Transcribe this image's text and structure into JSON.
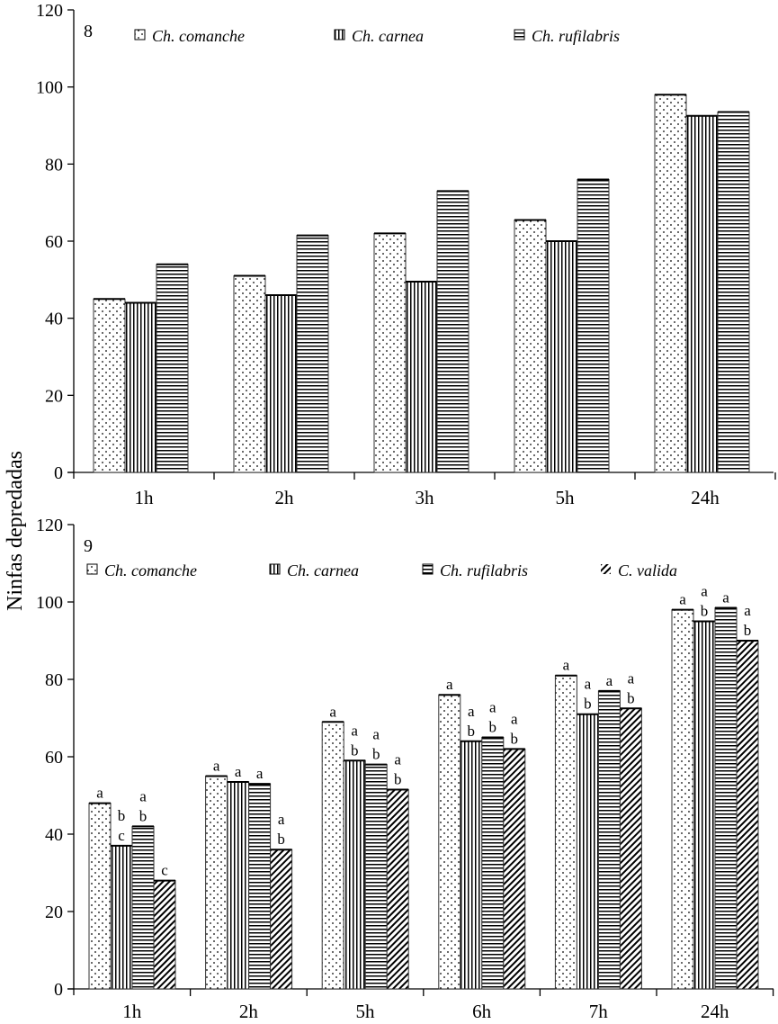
{
  "figure": {
    "ylabel": "Ninfas depredadas"
  },
  "chart_data": [
    {
      "type": "bar",
      "panel": "8",
      "categories": [
        "1h",
        "2h",
        "3h",
        "5h",
        "24h"
      ],
      "series": [
        {
          "name": "Ch. comanche",
          "pattern": "dots",
          "values": [
            45,
            51,
            62,
            65.5,
            98
          ]
        },
        {
          "name": "Ch. carnea",
          "pattern": "vertical",
          "values": [
            44,
            46,
            49.5,
            60,
            92.5
          ]
        },
        {
          "name": "Ch. rufilabris",
          "pattern": "horizontal",
          "values": [
            54,
            61.5,
            73,
            76,
            93.5
          ]
        }
      ],
      "ylim": [
        0,
        120
      ],
      "yticks": [
        "0",
        "20",
        "40",
        "60",
        "80",
        "100",
        "120"
      ],
      "xlabel": "",
      "ylabel": "Ninfas depredadas",
      "legend": "top"
    },
    {
      "type": "bar",
      "panel": "9",
      "categories": [
        "1h",
        "2h",
        "5h",
        "6h",
        "7h",
        "24h"
      ],
      "series": [
        {
          "name": "Ch. comanche",
          "pattern": "dots",
          "values": [
            48,
            55,
            69,
            76,
            81,
            98
          ],
          "letters": [
            "a",
            "a",
            "a",
            "a",
            "a",
            "a"
          ]
        },
        {
          "name": "Ch. carnea",
          "pattern": "vertical",
          "values": [
            37,
            53.5,
            59,
            64,
            71,
            95
          ],
          "letters": [
            "b\nc",
            "a",
            "a\nb",
            "a\nb",
            "a\nb",
            "a\nb"
          ]
        },
        {
          "name": "Ch. rufilabris",
          "pattern": "horizontal",
          "values": [
            42,
            53,
            58,
            65,
            77,
            98.5
          ],
          "letters": [
            "a\nb",
            "a",
            "a\nb",
            "a\nb",
            "a",
            "a"
          ]
        },
        {
          "name": "C. valida",
          "pattern": "diagonal",
          "values": [
            28,
            36,
            51.5,
            62,
            72.5,
            90
          ],
          "letters": [
            "c",
            "a\nb",
            "a\nb",
            "a\nb",
            "a\nb",
            "a\nb"
          ]
        }
      ],
      "ylim": [
        0,
        120
      ],
      "yticks": [
        "0",
        "20",
        "40",
        "60",
        "80",
        "100",
        "120"
      ],
      "xlabel": "",
      "ylabel": "Ninfas depredadas",
      "legend": "top"
    }
  ]
}
